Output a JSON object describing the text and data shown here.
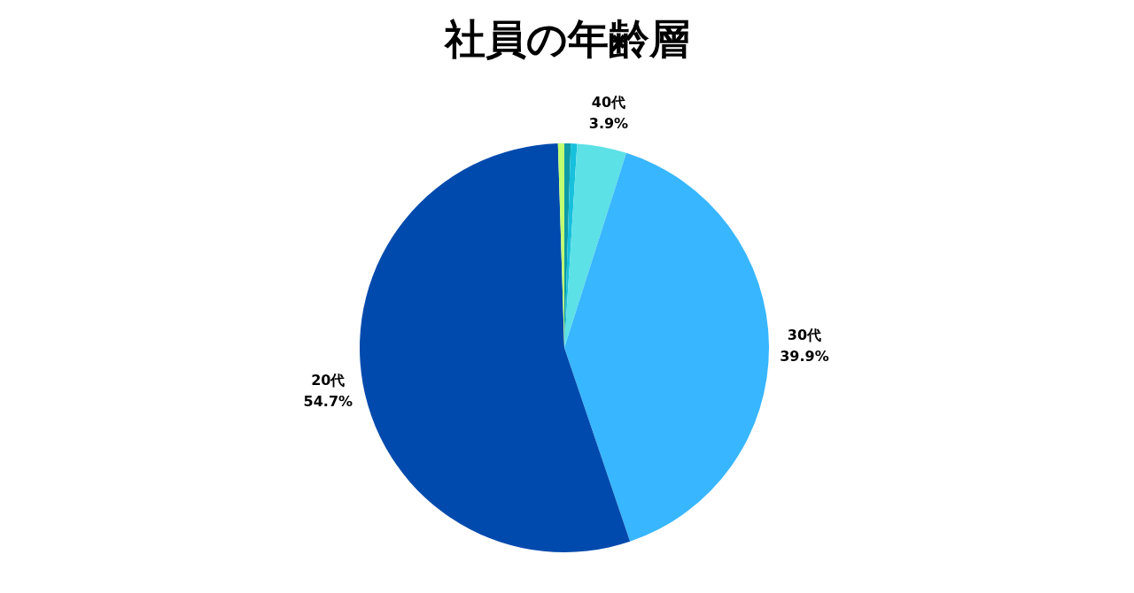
{
  "chart_data": {
    "type": "pie",
    "title": "社員の年齢層",
    "categories": [
      null,
      null,
      "40代",
      "30代",
      "20代",
      null
    ],
    "values": [
      0.5,
      0.5,
      3.9,
      39.9,
      54.7,
      0.5
    ],
    "colors": [
      "#0e9aa7",
      "#17c0dc",
      "#5ce1e6",
      "#38b6ff",
      "#004aad",
      "#c1ff72"
    ],
    "value_labels": [
      null,
      null,
      "3.9%",
      "39.9%",
      "54.7%",
      null
    ]
  }
}
